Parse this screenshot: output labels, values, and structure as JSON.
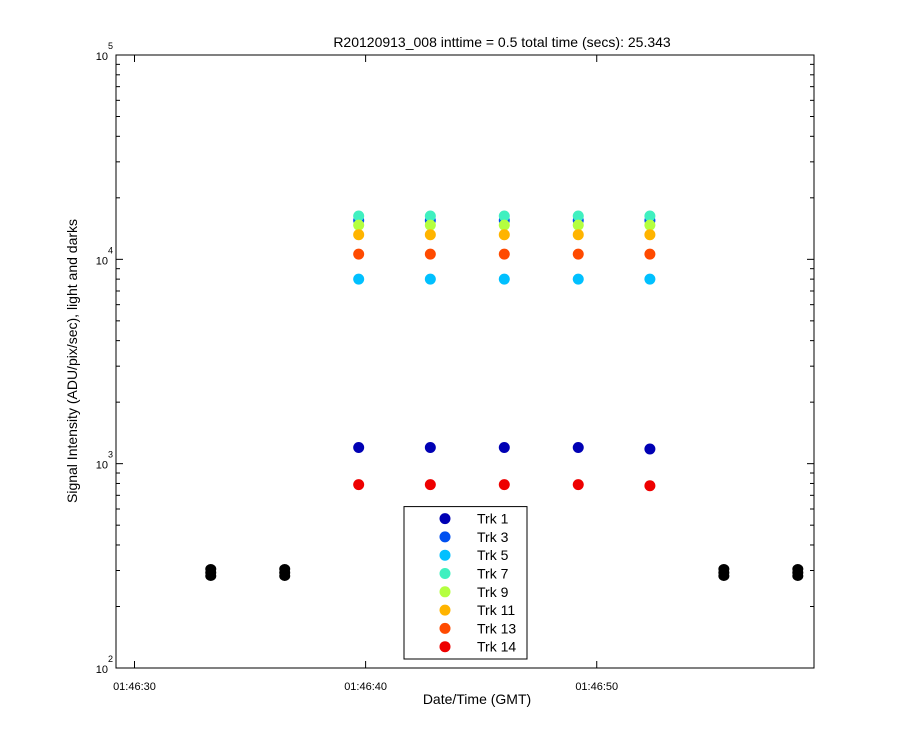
{
  "chart_data": {
    "type": "scatter",
    "title": "R20120913_008 inttime = 0.5 total time (secs): 25.343",
    "x_label": "Date/Time (GMT)",
    "y_label": "Signal Intensity (ADU/pix/sec), light and darks",
    "log_y": true,
    "xlim": [
      "01:46:29.2",
      "01:46:59.4"
    ],
    "xticks": [
      "01:46:30",
      "01:46:40",
      "01:46:50"
    ],
    "ylim": [
      100,
      100000
    ],
    "yticks": [
      {
        "value": 100,
        "label": "10",
        "exponent": "2"
      },
      {
        "value": 1000,
        "label": "10",
        "exponent": "3"
      },
      {
        "value": 10000,
        "label": "10",
        "exponent": "4"
      },
      {
        "value": 100000,
        "label": "10",
        "exponent": "5"
      }
    ],
    "legend": "bottom-center",
    "x": [
      "01:46:39.7",
      "01:46:42.8",
      "01:46:46.0",
      "01:46:49.2",
      "01:46:52.3"
    ],
    "series": [
      {
        "name": "Trk 1",
        "color": "#0000b4",
        "values": [
          1200,
          1200,
          1200,
          1200,
          1180
        ]
      },
      {
        "name": "Trk 3",
        "color": "#0050f0",
        "values": [
          15500,
          15500,
          15500,
          15500,
          15500
        ]
      },
      {
        "name": "Trk 5",
        "color": "#00c0ff",
        "values": [
          8000,
          8000,
          8000,
          8000,
          8000
        ]
      },
      {
        "name": "Trk 7",
        "color": "#40f0c0",
        "values": [
          16300,
          16300,
          16300,
          16300,
          16300
        ]
      },
      {
        "name": "Trk 9",
        "color": "#b4ff40",
        "values": [
          14700,
          14700,
          14700,
          14700,
          14700
        ]
      },
      {
        "name": "Trk 11",
        "color": "#ffb400",
        "values": [
          13200,
          13200,
          13200,
          13200,
          13200
        ]
      },
      {
        "name": "Trk 13",
        "color": "#ff4a00",
        "values": [
          10600,
          10600,
          10600,
          10600,
          10600
        ]
      },
      {
        "name": "Trk 14",
        "color": "#ee0000",
        "values": [
          790,
          790,
          790,
          790,
          780
        ]
      }
    ],
    "darks": {
      "color": "#000000",
      "x": [
        "01:46:33.3",
        "01:46:33.3",
        "01:46:33.3",
        "01:46:36.5",
        "01:46:36.5",
        "01:46:36.5",
        "01:46:55.5",
        "01:46:55.5",
        "01:46:55.5",
        "01:46:58.7",
        "01:46:58.7",
        "01:46:58.7"
      ],
      "values": [
        305,
        293,
        282,
        305,
        293,
        282,
        305,
        293,
        282,
        305,
        293,
        282
      ]
    }
  }
}
